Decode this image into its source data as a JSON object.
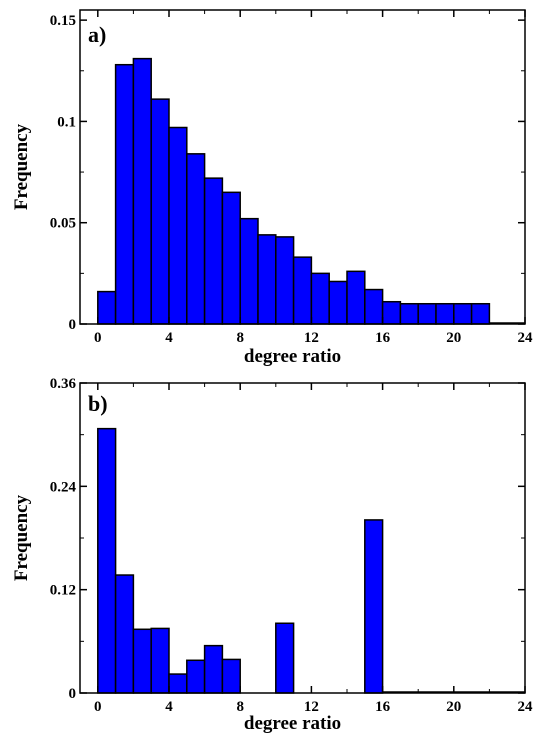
{
  "colors": {
    "bar_fill": "#0000ff",
    "bar_stroke": "#000000",
    "axis": "#000000",
    "background": "#ffffff"
  },
  "chart_data": [
    {
      "type": "bar",
      "panel_label": "a)",
      "xlabel": "degree ratio",
      "ylabel": "Frequency",
      "xlim": [
        -1,
        24
      ],
      "ylim": [
        0,
        0.155
      ],
      "x_ticks": [
        0,
        4,
        8,
        12,
        16,
        20,
        24
      ],
      "x_tick_labels": [
        "0",
        "4",
        "8",
        "12",
        "16",
        "20",
        "24"
      ],
      "y_ticks": [
        0,
        0.05,
        0.1,
        0.15
      ],
      "y_tick_labels": [
        "0",
        "0.05",
        "0.1",
        "0.15"
      ],
      "bin_width": 1,
      "bin_starts": [
        0,
        1,
        2,
        3,
        4,
        5,
        6,
        7,
        8,
        9,
        10,
        11,
        12,
        13,
        14,
        15,
        16,
        17,
        18,
        19,
        20,
        21
      ],
      "values": [
        0.016,
        0.128,
        0.131,
        0.111,
        0.097,
        0.084,
        0.072,
        0.065,
        0.052,
        0.044,
        0.043,
        0.033,
        0.025,
        0.021,
        0.026,
        0.017,
        0.011,
        0.01,
        0.01,
        0.01,
        0.01,
        0.01
      ]
    },
    {
      "type": "bar",
      "panel_label": "b)",
      "xlabel": "degree ratio",
      "ylabel": "Frequency",
      "xlim": [
        -1,
        24
      ],
      "ylim": [
        0,
        0.36
      ],
      "x_ticks": [
        0,
        4,
        8,
        12,
        16,
        20,
        24
      ],
      "x_tick_labels": [
        "0",
        "4",
        "8",
        "12",
        "16",
        "20",
        "24"
      ],
      "y_ticks": [
        0,
        0.12,
        0.24,
        0.36
      ],
      "y_tick_labels": [
        "0",
        "0.12",
        "0.24",
        "0.36"
      ],
      "bin_width": 1,
      "bin_starts": [
        0,
        1,
        2,
        3,
        4,
        5,
        6,
        7,
        10,
        15
      ],
      "values": [
        0.307,
        0.137,
        0.074,
        0.075,
        0.022,
        0.038,
        0.055,
        0.039,
        0.081,
        0.201
      ]
    }
  ]
}
